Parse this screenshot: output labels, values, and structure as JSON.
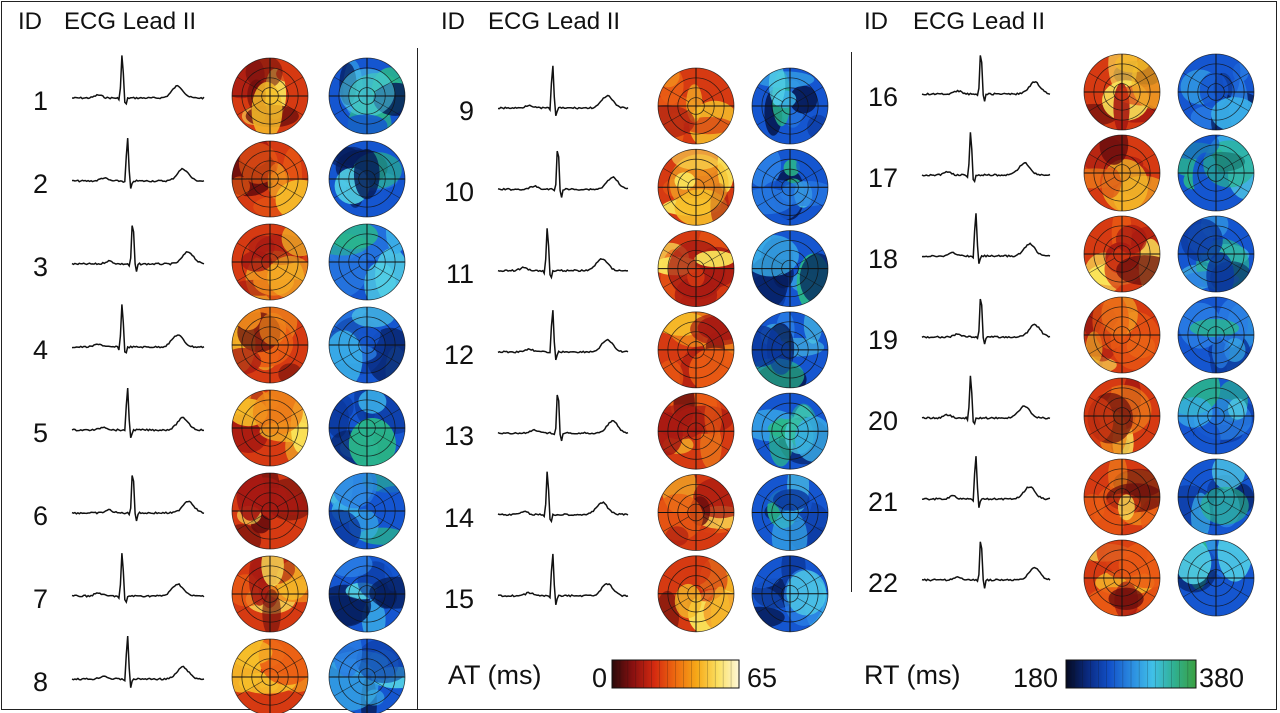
{
  "headers": [
    {
      "id_label": "ID",
      "title": "ECG Lead II"
    },
    {
      "id_label": "ID",
      "title": "ECG Lead II"
    },
    {
      "id_label": "ID",
      "title": "ECG Lead II"
    }
  ],
  "columns": [
    {
      "ids": [
        "1",
        "2",
        "3",
        "4",
        "5",
        "6",
        "7",
        "8"
      ]
    },
    {
      "ids": [
        "9",
        "10",
        "11",
        "12",
        "13",
        "14",
        "15"
      ]
    },
    {
      "ids": [
        "16",
        "17",
        "18",
        "19",
        "20",
        "21",
        "22"
      ]
    }
  ],
  "colorbars": {
    "at": {
      "label": "AT (ms)",
      "min": "0",
      "max": "65",
      "colors": [
        "#2a0a0a",
        "#8a1010",
        "#d42a10",
        "#ee6a10",
        "#f6a818",
        "#fbe060",
        "#fdf7d8"
      ]
    },
    "rt": {
      "label": "RT (ms)",
      "min": "180",
      "max": "380",
      "colors": [
        "#050a20",
        "#0a2a80",
        "#1250c8",
        "#2a8ae0",
        "#40c0e8",
        "#30b090",
        "#3aa040"
      ]
    }
  }
}
